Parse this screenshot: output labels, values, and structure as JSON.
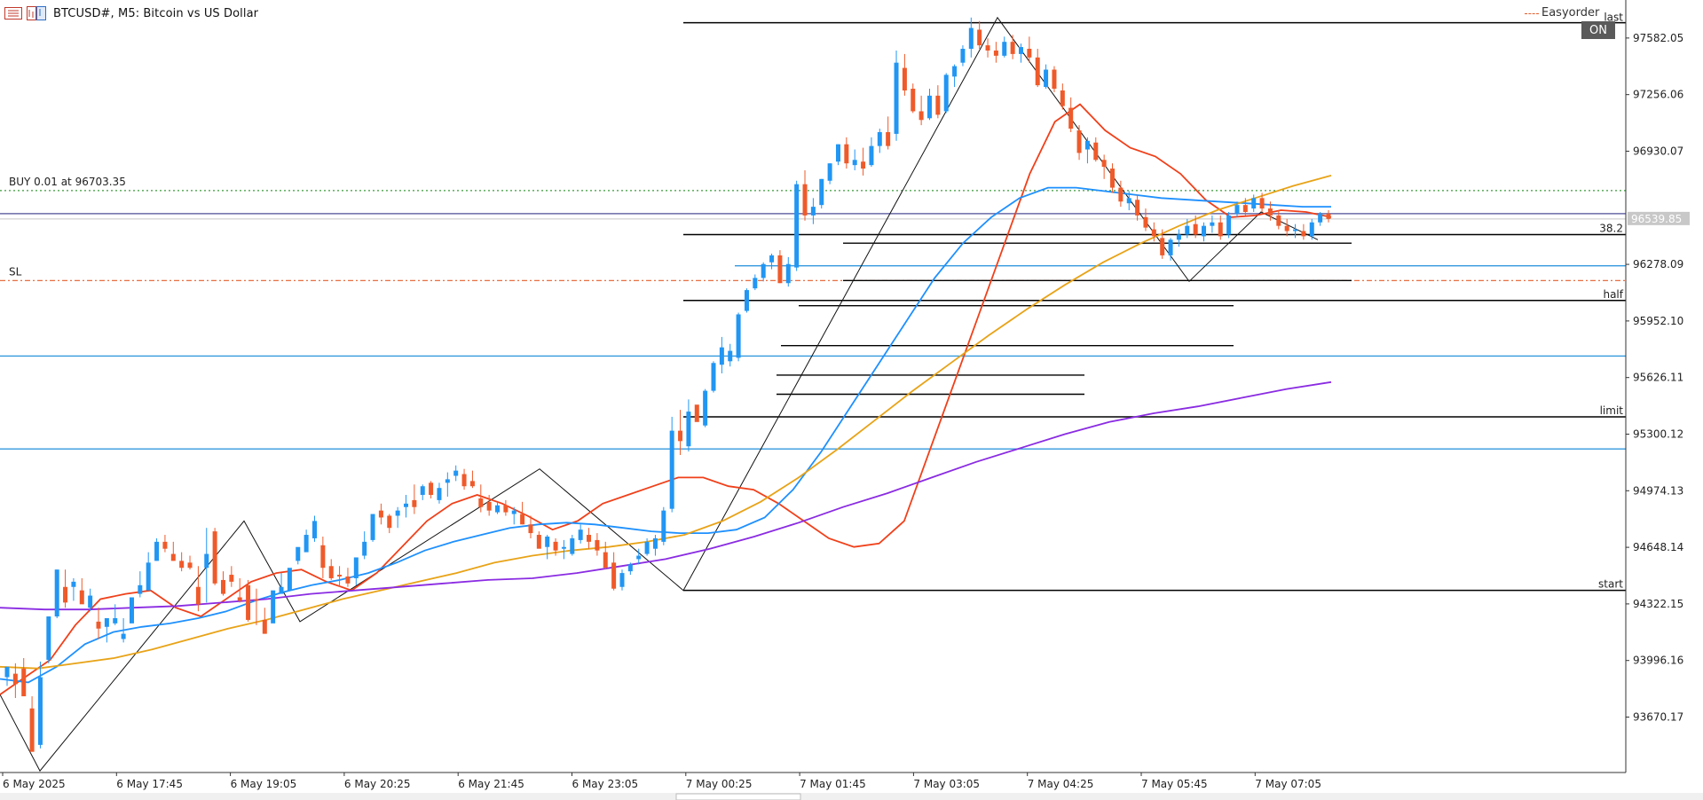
{
  "header": {
    "symbol_title": "BTCUSD#, M5:  Bitcoin vs US Dollar"
  },
  "expert": {
    "name": "Easyorder",
    "status": "ON"
  },
  "icons": [
    "chart-bars-icon",
    "chart-window-icon",
    "expert-cap-icon"
  ],
  "chart_data": {
    "type": "candlestick",
    "symbol": "BTCUSD#",
    "timeframe": "M5",
    "price_labels": [
      "97582.05",
      "97256.06",
      "96930.07",
      "96278.09",
      "95952.10",
      "95626.11",
      "95300.12",
      "94974.13",
      "94648.14",
      "94322.15",
      "93996.16",
      "93670.17"
    ],
    "ylim": [
      93356,
      97750
    ],
    "time_labels": [
      "6 May 2025",
      "6 May 17:45",
      "6 May 19:05",
      "6 May 20:25",
      "6 May 21:45",
      "6 May 23:05",
      "7 May 00:25",
      "7 May 01:45",
      "7 May 03:05",
      "7 May 04:25",
      "7 May 05:45",
      "7 May 07:05"
    ],
    "current_price": "96539.85",
    "candles": [
      [
        93900,
        93955,
        93850,
        93960
      ],
      [
        93920,
        93980,
        93780,
        93860
      ],
      [
        93950,
        94010,
        93820,
        93790
      ],
      [
        93720,
        93790,
        93480,
        93470
      ],
      [
        93510,
        93990,
        93490,
        93900
      ],
      [
        94000,
        94250,
        93980,
        94250
      ],
      [
        94250,
        94520,
        94240,
        94520
      ],
      [
        94420,
        94520,
        94300,
        94330
      ],
      [
        94420,
        94470,
        94340,
        94450
      ],
      [
        94400,
        94470,
        94330,
        94320
      ],
      [
        94300,
        94410,
        94280,
        94370
      ],
      [
        94220,
        94300,
        94120,
        94180
      ],
      [
        94190,
        94240,
        94100,
        94240
      ],
      [
        94210,
        94320,
        94200,
        94240
      ],
      [
        94120,
        94240,
        94100,
        94150
      ],
      [
        94210,
        94350,
        94220,
        94360
      ],
      [
        94380,
        94510,
        94360,
        94430
      ],
      [
        94400,
        94620,
        94400,
        94560
      ],
      [
        94570,
        94700,
        94570,
        94680
      ],
      [
        94680,
        94720,
        94620,
        94640
      ],
      [
        94610,
        94680,
        94570,
        94570
      ],
      [
        94570,
        94620,
        94510,
        94530
      ],
      [
        94560,
        94600,
        94520,
        94530
      ],
      [
        94420,
        94540,
        94280,
        94320
      ],
      [
        94530,
        94760,
        94330,
        94610
      ],
      [
        94740,
        94760,
        94430,
        94440
      ],
      [
        94460,
        94510,
        94370,
        94380
      ],
      [
        94490,
        94540,
        94420,
        94450
      ],
      [
        94360,
        94470,
        94330,
        94340
      ],
      [
        94430,
        94460,
        94220,
        94230
      ],
      [
        94350,
        94410,
        94200,
        94340
      ],
      [
        94230,
        94300,
        94150,
        94150
      ],
      [
        94210,
        94360,
        94230,
        94400
      ],
      [
        94380,
        94500,
        94390,
        94420
      ],
      [
        94400,
        94520,
        94420,
        94530
      ],
      [
        94570,
        94640,
        94550,
        94650
      ],
      [
        94620,
        94750,
        94630,
        94720
      ],
      [
        94700,
        94830,
        94680,
        94800
      ],
      [
        94660,
        94710,
        94470,
        94530
      ],
      [
        94540,
        94580,
        94460,
        94470
      ],
      [
        94490,
        94540,
        94420,
        94480
      ],
      [
        94480,
        94530,
        94420,
        94440
      ],
      [
        94470,
        94580,
        94430,
        94590
      ],
      [
        94600,
        94740,
        94580,
        94680
      ],
      [
        94690,
        94830,
        94680,
        94840
      ],
      [
        94860,
        94900,
        94780,
        94820
      ],
      [
        94830,
        94840,
        94730,
        94760
      ],
      [
        94830,
        94880,
        94760,
        94860
      ],
      [
        94880,
        94950,
        94820,
        94900
      ],
      [
        94920,
        95010,
        94840,
        94880
      ],
      [
        94950,
        95010,
        94920,
        95000
      ],
      [
        95020,
        95030,
        94930,
        94950
      ],
      [
        94920,
        95020,
        94900,
        94990
      ],
      [
        95020,
        95080,
        94940,
        95040
      ],
      [
        95060,
        95120,
        95030,
        95090
      ],
      [
        95070,
        95100,
        94980,
        95000
      ],
      [
        95030,
        95090,
        94990,
        95000
      ],
      [
        94930,
        95010,
        94850,
        94880
      ],
      [
        94910,
        94950,
        94830,
        94860
      ],
      [
        94850,
        94910,
        94840,
        94890
      ],
      [
        94890,
        94920,
        94830,
        94850
      ],
      [
        94840,
        94880,
        94780,
        94860
      ],
      [
        94840,
        94910,
        94780,
        94780
      ],
      [
        94780,
        94830,
        94700,
        94730
      ],
      [
        94720,
        94740,
        94650,
        94640
      ],
      [
        94650,
        94720,
        94580,
        94710
      ],
      [
        94680,
        94700,
        94600,
        94630
      ],
      [
        94640,
        94690,
        94580,
        94650
      ],
      [
        94610,
        94720,
        94600,
        94700
      ],
      [
        94690,
        94780,
        94670,
        94750
      ],
      [
        94720,
        94760,
        94640,
        94680
      ],
      [
        94690,
        94730,
        94600,
        94630
      ],
      [
        94620,
        94680,
        94520,
        94530
      ],
      [
        94560,
        94620,
        94400,
        94410
      ],
      [
        94420,
        94520,
        94400,
        94500
      ],
      [
        94510,
        94560,
        94490,
        94550
      ],
      [
        94580,
        94640,
        94550,
        94600
      ],
      [
        94610,
        94700,
        94600,
        94680
      ],
      [
        94640,
        94720,
        94600,
        94700
      ],
      [
        94680,
        94880,
        94660,
        94860
      ],
      [
        94870,
        95400,
        94850,
        95320
      ],
      [
        95320,
        95440,
        95180,
        95260
      ],
      [
        95230,
        95500,
        95200,
        95430
      ],
      [
        95470,
        95460,
        95390,
        95370
      ],
      [
        95350,
        95560,
        95340,
        95550
      ],
      [
        95550,
        95720,
        95540,
        95710
      ],
      [
        95700,
        95860,
        95650,
        95800
      ],
      [
        95720,
        95820,
        95690,
        95780
      ],
      [
        95740,
        96000,
        95720,
        95990
      ],
      [
        96010,
        96140,
        96000,
        96130
      ],
      [
        96140,
        96220,
        96130,
        96200
      ],
      [
        96200,
        96290,
        96180,
        96280
      ],
      [
        96290,
        96340,
        96250,
        96330
      ],
      [
        96330,
        96360,
        96170,
        96170
      ],
      [
        96170,
        96320,
        96150,
        96280
      ],
      [
        96260,
        96760,
        96240,
        96740
      ],
      [
        96740,
        96820,
        96530,
        96560
      ],
      [
        96560,
        96660,
        96510,
        96610
      ],
      [
        96620,
        96770,
        96600,
        96770
      ],
      [
        96760,
        96860,
        96740,
        96860
      ],
      [
        96870,
        96970,
        96850,
        96970
      ],
      [
        96970,
        97010,
        96830,
        96860
      ],
      [
        96850,
        96940,
        96820,
        96880
      ],
      [
        96870,
        96950,
        96790,
        96830
      ],
      [
        96850,
        97010,
        96840,
        96960
      ],
      [
        96960,
        97060,
        96920,
        97040
      ],
      [
        97040,
        97130,
        96940,
        96960
      ],
      [
        97030,
        97510,
        96990,
        97440
      ],
      [
        97410,
        97490,
        97250,
        97280
      ],
      [
        97290,
        97320,
        97150,
        97160
      ],
      [
        97160,
        97250,
        97080,
        97110
      ],
      [
        97120,
        97290,
        97110,
        97250
      ],
      [
        97250,
        97310,
        97120,
        97140
      ],
      [
        97160,
        97380,
        97150,
        97370
      ],
      [
        97360,
        97430,
        97300,
        97420
      ],
      [
        97440,
        97540,
        97420,
        97520
      ],
      [
        97520,
        97700,
        97470,
        97640
      ],
      [
        97630,
        97680,
        97520,
        97540
      ],
      [
        97540,
        97580,
        97470,
        97510
      ],
      [
        97510,
        97560,
        97440,
        97480
      ],
      [
        97480,
        97590,
        97470,
        97560
      ],
      [
        97560,
        97600,
        97460,
        97490
      ],
      [
        97490,
        97550,
        97440,
        97530
      ],
      [
        97520,
        97590,
        97440,
        97470
      ],
      [
        97470,
        97520,
        97300,
        97310
      ],
      [
        97300,
        97430,
        97290,
        97400
      ],
      [
        97400,
        97420,
        97270,
        97290
      ],
      [
        97280,
        97320,
        97170,
        97190
      ],
      [
        97180,
        97240,
        97040,
        97060
      ],
      [
        97050,
        97080,
        96880,
        96920
      ],
      [
        96940,
        97010,
        96860,
        96990
      ],
      [
        96980,
        97010,
        96870,
        96880
      ],
      [
        96880,
        96910,
        96770,
        96840
      ],
      [
        96830,
        96860,
        96690,
        96720
      ],
      [
        96720,
        96760,
        96610,
        96640
      ],
      [
        96630,
        96700,
        96590,
        96660
      ],
      [
        96650,
        96680,
        96530,
        96560
      ],
      [
        96550,
        96600,
        96470,
        96490
      ],
      [
        96480,
        96520,
        96410,
        96440
      ],
      [
        96430,
        96480,
        96310,
        96330
      ],
      [
        96330,
        96430,
        96300,
        96420
      ],
      [
        96420,
        96480,
        96380,
        96450
      ],
      [
        96450,
        96540,
        96430,
        96500
      ],
      [
        96510,
        96560,
        96430,
        96450
      ],
      [
        96440,
        96520,
        96410,
        96500
      ],
      [
        96500,
        96560,
        96460,
        96520
      ],
      [
        96520,
        96560,
        96420,
        96440
      ],
      [
        96450,
        96580,
        96430,
        96560
      ],
      [
        96570,
        96640,
        96550,
        96620
      ],
      [
        96620,
        96660,
        96560,
        96580
      ],
      [
        96600,
        96680,
        96580,
        96660
      ],
      [
        96660,
        96690,
        96580,
        96600
      ],
      [
        96600,
        96640,
        96530,
        96560
      ],
      [
        96560,
        96590,
        96480,
        96500
      ],
      [
        96500,
        96540,
        96440,
        96470
      ],
      [
        96470,
        96510,
        96430,
        96480
      ],
      [
        96470,
        96510,
        96420,
        96440
      ],
      [
        96440,
        96540,
        96420,
        96520
      ],
      [
        96520,
        96580,
        96500,
        96570
      ],
      [
        96570,
        96590,
        96520,
        96540
      ]
    ],
    "series": [
      {
        "name": "",
        "color": "#f0401a",
        "values": [
          93800,
          93900,
          94000,
          94200,
          94350,
          94380,
          94400,
          94300,
          94250,
          94350,
          94450,
          94500,
          94520,
          94450,
          94400,
          94500,
          94650,
          94800,
          94900,
          94950,
          94900,
          94830,
          94750,
          94800,
          94900,
          94950,
          95000,
          95050,
          95050,
          95000,
          94980,
          94900,
          94800,
          94700,
          94650,
          94670,
          94800,
          95200,
          95600,
          96000,
          96400,
          96800,
          97100,
          97200,
          97050,
          96950,
          96900,
          96800,
          96650,
          96550,
          96560,
          96590,
          96580,
          96550
        ]
      },
      {
        "name": "",
        "color": "#1e90ff",
        "values": [
          93890,
          93870,
          93960,
          94090,
          94160,
          94190,
          94210,
          94240,
          94280,
          94340,
          94390,
          94430,
          94460,
          94500,
          94560,
          94630,
          94680,
          94720,
          94760,
          94780,
          94790,
          94780,
          94760,
          94740,
          94730,
          94730,
          94750,
          94820,
          94980,
          95200,
          95450,
          95700,
          95950,
          96200,
          96400,
          96550,
          96660,
          96720,
          96720,
          96700,
          96680,
          96660,
          96650,
          96640,
          96630,
          96620,
          96610,
          96610
        ]
      },
      {
        "name": "",
        "color": "#e8a317",
        "values": [
          93960,
          93950,
          93980,
          94010,
          94060,
          94120,
          94180,
          94230,
          94290,
          94350,
          94400,
          94450,
          94500,
          94560,
          94600,
          94630,
          94650,
          94680,
          94720,
          94800,
          94910,
          95050,
          95210,
          95380,
          95550,
          95710,
          95870,
          96020,
          96160,
          96290,
          96400,
          96500,
          96590,
          96660,
          96730,
          96790
        ]
      },
      {
        "name": "",
        "color": "#8a2be2",
        "values": [
          94300,
          94290,
          94290,
          94300,
          94310,
          94330,
          94350,
          94380,
          94400,
          94420,
          94440,
          94460,
          94470,
          94500,
          94540,
          94580,
          94640,
          94710,
          94790,
          94880,
          94960,
          95050,
          95140,
          95220,
          95300,
          95370,
          95420,
          95460,
          95510,
          95560,
          95600
        ]
      }
    ],
    "horizontal_lines": [
      {
        "label": "BUY 0.01 at 96703.35",
        "price": 96703.35,
        "color": "#3a9a3a",
        "style": "dotted"
      },
      {
        "label": "SL",
        "price": 96185,
        "color": "#e35d2b",
        "style": "dashdot"
      },
      {
        "label": "last",
        "price": 97670,
        "color": "#000000",
        "style": "solid"
      },
      {
        "label": "38.2",
        "price": 96450,
        "color": "#000000",
        "style": "solid"
      },
      {
        "label": "half",
        "price": 96070,
        "color": "#000000",
        "style": "solid"
      },
      {
        "label": "limit",
        "price": 95400,
        "color": "#000000",
        "style": "solid"
      },
      {
        "label": "start",
        "price": 94400,
        "color": "#000000",
        "style": "solid"
      }
    ],
    "support_lines": [
      96270,
      95750,
      95215
    ]
  }
}
